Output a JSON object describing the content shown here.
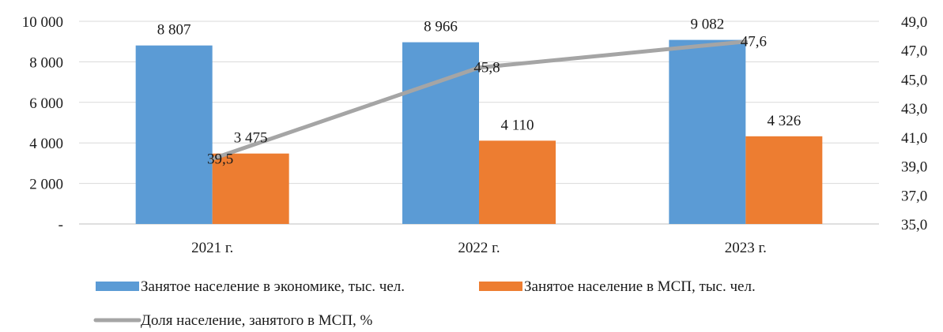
{
  "chart_data": {
    "type": "bar",
    "title": "",
    "categories": [
      "2021 г.",
      "2022 г.",
      "2023 г."
    ],
    "series": [
      {
        "name": "Занятое население в экономике, тыс. чел.",
        "kind": "bar",
        "axis": "left",
        "color": "#5B9BD5",
        "values": [
          8807,
          8966,
          9082
        ],
        "labels": [
          "8 807",
          "8 966",
          "9 082"
        ]
      },
      {
        "name": "Занятое население в МСП, тыс. чел.",
        "kind": "bar",
        "axis": "left",
        "color": "#ED7D31",
        "values": [
          3475,
          4110,
          4326
        ],
        "labels": [
          "3 475",
          "4 110",
          "4 326"
        ]
      },
      {
        "name": "Доля население, занятого в МСП, %",
        "kind": "line",
        "axis": "right",
        "color": "#A5A5A5",
        "values": [
          39.5,
          45.8,
          47.6
        ],
        "labels": [
          "39,5",
          "45,8",
          "47,6"
        ]
      }
    ],
    "y_left": {
      "min": 0,
      "max": 10000,
      "ticks": [
        0,
        2000,
        4000,
        6000,
        8000,
        10000
      ],
      "tick_labels": [
        "-",
        "2 000",
        "4 000",
        "6 000",
        "8 000",
        "10 000"
      ]
    },
    "y_right": {
      "min": 35,
      "max": 49,
      "ticks": [
        35,
        37,
        39,
        41,
        43,
        45,
        47,
        49
      ],
      "tick_labels": [
        "35,0",
        "37,0",
        "39,0",
        "41,0",
        "43,0",
        "45,0",
        "47,0",
        "49,0"
      ]
    },
    "grid": true,
    "legend_position": "bottom-left"
  }
}
